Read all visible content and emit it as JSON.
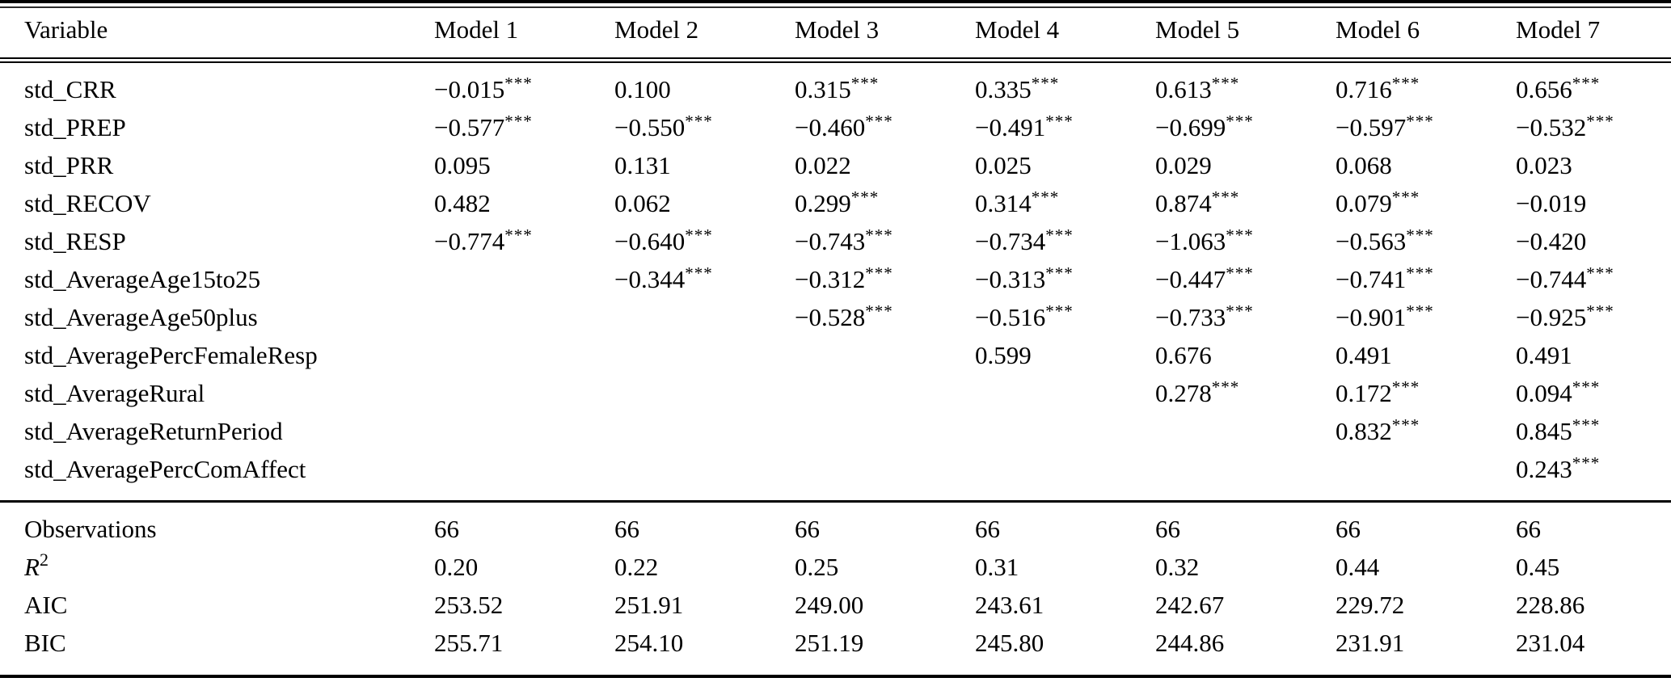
{
  "table": {
    "columns": [
      "Variable",
      "Model 1",
      "Model 2",
      "Model 3",
      "Model 4",
      "Model 5",
      "Model 6",
      "Model 7"
    ],
    "rows": [
      {
        "variable": "std_CRR",
        "cells": [
          "−0.015***",
          "0.100",
          "0.315***",
          "0.335***",
          "0.613***",
          "0.716***",
          "0.656***"
        ]
      },
      {
        "variable": "std_PREP",
        "cells": [
          "−0.577***",
          "−0.550***",
          "−0.460***",
          "−0.491***",
          "−0.699***",
          "−0.597***",
          "−0.532***"
        ]
      },
      {
        "variable": "std_PRR",
        "cells": [
          "0.095",
          "0.131",
          "0.022",
          "0.025",
          "0.029",
          "0.068",
          "0.023"
        ]
      },
      {
        "variable": "std_RECOV",
        "cells": [
          "0.482",
          "0.062",
          "0.299***",
          "0.314***",
          "0.874***",
          "0.079***",
          "−0.019"
        ]
      },
      {
        "variable": "std_RESP",
        "cells": [
          "−0.774***",
          "−0.640***",
          "−0.743***",
          "−0.734***",
          "−1.063***",
          "−0.563***",
          "−0.420"
        ]
      },
      {
        "variable": "std_AverageAge15to25",
        "cells": [
          "",
          "−0.344***",
          "−0.312***",
          "−0.313***",
          "−0.447***",
          "−0.741***",
          "−0.744***"
        ]
      },
      {
        "variable": "std_AverageAge50plus",
        "cells": [
          "",
          "",
          "−0.528***",
          "−0.516***",
          "−0.733***",
          "−0.901***",
          "−0.925***"
        ]
      },
      {
        "variable": "std_AveragePercFemaleResp",
        "cells": [
          "",
          "",
          "",
          "0.599",
          "0.676",
          "0.491",
          "0.491"
        ]
      },
      {
        "variable": "std_AverageRural",
        "cells": [
          "",
          "",
          "",
          "",
          "0.278***",
          "0.172***",
          "0.094***"
        ]
      },
      {
        "variable": "std_AverageReturnPeriod",
        "cells": [
          "",
          "",
          "",
          "",
          "",
          "0.832***",
          "0.845***"
        ]
      },
      {
        "variable": "std_AveragePercComAffect",
        "cells": [
          "",
          "",
          "",
          "",
          "",
          "",
          "0.243***"
        ]
      }
    ],
    "footer": [
      {
        "label": "Observations",
        "cells": [
          "66",
          "66",
          "66",
          "66",
          "66",
          "66",
          "66"
        ]
      },
      {
        "label": "R",
        "label_sup": "2",
        "label_italic": true,
        "cells": [
          "0.20",
          "0.22",
          "0.25",
          "0.31",
          "0.32",
          "0.44",
          "0.45"
        ]
      },
      {
        "label": "AIC",
        "cells": [
          "253.52",
          "251.91",
          "249.00",
          "243.61",
          "242.67",
          "229.72",
          "228.86"
        ]
      },
      {
        "label": "BIC",
        "cells": [
          "255.71",
          "254.10",
          "251.19",
          "245.80",
          "244.86",
          "231.91",
          "231.04"
        ]
      }
    ]
  }
}
